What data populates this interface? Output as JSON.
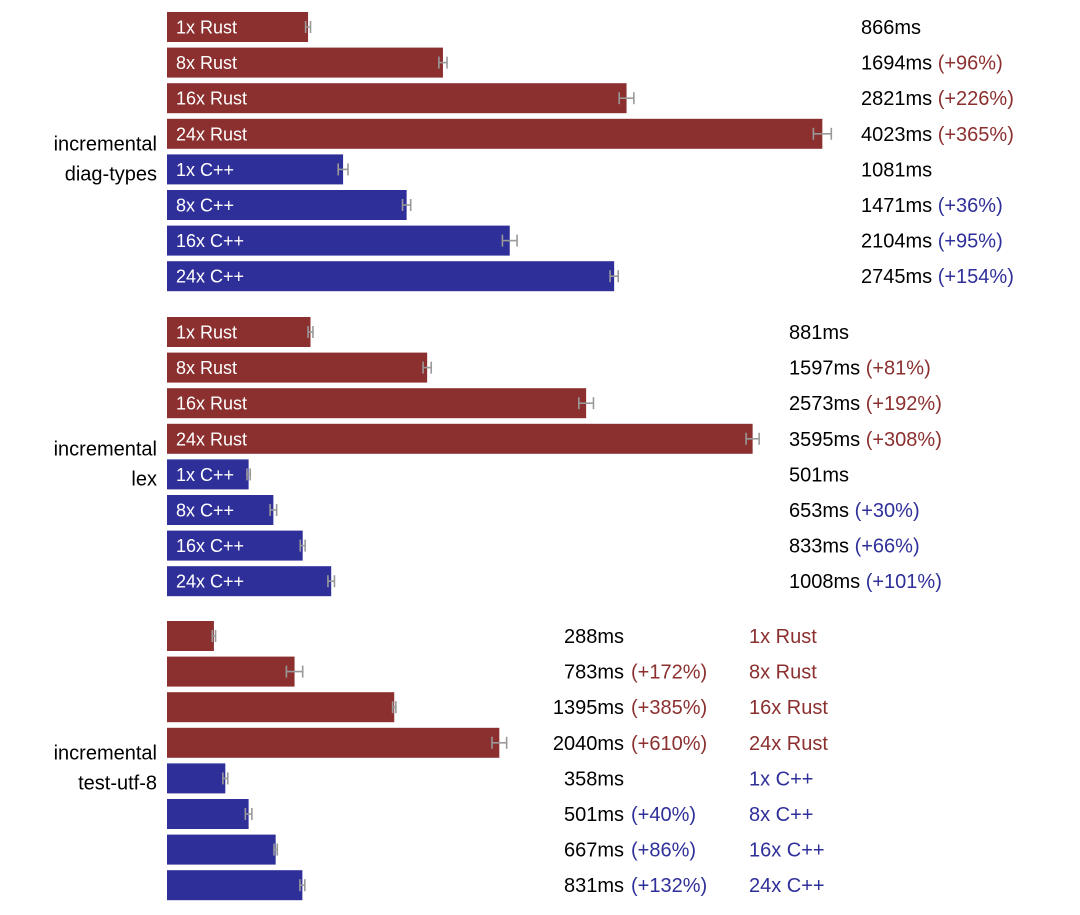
{
  "chart_data": {
    "type": "bar",
    "orientation": "horizontal",
    "unit": "ms",
    "colors": {
      "rust": "#8b2f2f",
      "cpp": "#2f2f9a",
      "value_text": "#000000",
      "error_bar": "#999999"
    },
    "groups": [
      {
        "name_lines": [
          "incremental",
          "diag-types"
        ],
        "label_position": "inside",
        "bars": [
          {
            "label": "1x Rust",
            "lang": "rust",
            "value": 866,
            "value_text": "866ms",
            "delta_text": "",
            "error": 15
          },
          {
            "label": "8x Rust",
            "lang": "rust",
            "value": 1694,
            "value_text": "1694ms",
            "delta_text": "(+96%)",
            "error": 25
          },
          {
            "label": "16x Rust",
            "lang": "rust",
            "value": 2821,
            "value_text": "2821ms",
            "delta_text": "(+226%)",
            "error": 45
          },
          {
            "label": "24x Rust",
            "lang": "rust",
            "value": 4023,
            "value_text": "4023ms",
            "delta_text": "(+365%)",
            "error": 55
          },
          {
            "label": "1x C++",
            "lang": "cpp",
            "value": 1081,
            "value_text": "1081ms",
            "delta_text": "",
            "error": 30
          },
          {
            "label": "8x C++",
            "lang": "cpp",
            "value": 1471,
            "value_text": "1471ms",
            "delta_text": "(+36%)",
            "error": 25
          },
          {
            "label": "16x C++",
            "lang": "cpp",
            "value": 2104,
            "value_text": "2104ms",
            "delta_text": "(+95%)",
            "error": 45
          },
          {
            "label": "24x C++",
            "lang": "cpp",
            "value": 2745,
            "value_text": "2745ms",
            "delta_text": "(+154%)",
            "error": 25
          }
        ]
      },
      {
        "name_lines": [
          "incremental",
          "lex"
        ],
        "label_position": "inside",
        "bars": [
          {
            "label": "1x Rust",
            "lang": "rust",
            "value": 881,
            "value_text": "881ms",
            "delta_text": "",
            "error": 15
          },
          {
            "label": "8x Rust",
            "lang": "rust",
            "value": 1597,
            "value_text": "1597ms",
            "delta_text": "(+81%)",
            "error": 25
          },
          {
            "label": "16x Rust",
            "lang": "rust",
            "value": 2573,
            "value_text": "2573ms",
            "delta_text": "(+192%)",
            "error": 45
          },
          {
            "label": "24x Rust",
            "lang": "rust",
            "value": 3595,
            "value_text": "3595ms",
            "delta_text": "(+308%)",
            "error": 40
          },
          {
            "label": "1x C++",
            "lang": "cpp",
            "value": 501,
            "value_text": "501ms",
            "delta_text": "",
            "error": 10
          },
          {
            "label": "8x C++",
            "lang": "cpp",
            "value": 653,
            "value_text": "653ms",
            "delta_text": "(+30%)",
            "error": 20
          },
          {
            "label": "16x C++",
            "lang": "cpp",
            "value": 833,
            "value_text": "833ms",
            "delta_text": "(+66%)",
            "error": 15
          },
          {
            "label": "24x C++",
            "lang": "cpp",
            "value": 1008,
            "value_text": "1008ms",
            "delta_text": "(+101%)",
            "error": 20
          }
        ]
      },
      {
        "name_lines": [
          "incremental",
          "test-utf-8"
        ],
        "label_position": "right",
        "bars": [
          {
            "label": "1x Rust",
            "lang": "rust",
            "value": 288,
            "value_text": "288ms",
            "delta_text": "",
            "error": 10
          },
          {
            "label": "8x Rust",
            "lang": "rust",
            "value": 783,
            "value_text": "783ms",
            "delta_text": "(+172%)",
            "error": 50
          },
          {
            "label": "16x Rust",
            "lang": "rust",
            "value": 1395,
            "value_text": "1395ms",
            "delta_text": "(+385%)",
            "error": 10
          },
          {
            "label": "24x Rust",
            "lang": "rust",
            "value": 2040,
            "value_text": "2040ms",
            "delta_text": "(+610%)",
            "error": 45
          },
          {
            "label": "1x C++",
            "lang": "cpp",
            "value": 358,
            "value_text": "358ms",
            "delta_text": "",
            "error": 15
          },
          {
            "label": "8x C++",
            "lang": "cpp",
            "value": 501,
            "value_text": "501ms",
            "delta_text": "(+40%)",
            "error": 20
          },
          {
            "label": "16x C++",
            "lang": "cpp",
            "value": 667,
            "value_text": "667ms",
            "delta_text": "(+86%)",
            "error": 10
          },
          {
            "label": "24x C++",
            "lang": "cpp",
            "value": 831,
            "value_text": "831ms",
            "delta_text": "(+132%)",
            "error": 15
          }
        ]
      }
    ]
  }
}
